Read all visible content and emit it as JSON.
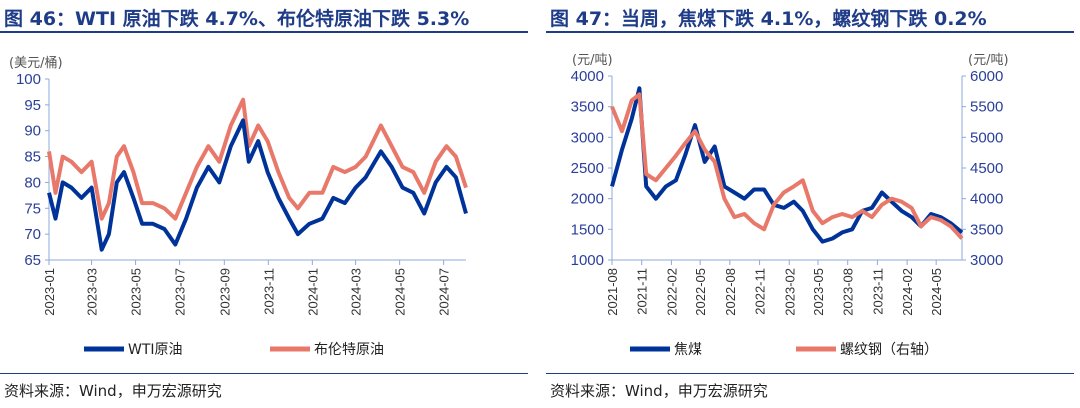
{
  "colors": {
    "title": "#1f3c88",
    "axis": "#8fa8dc",
    "series_blue": "#003399",
    "series_red": "#e8796a"
  },
  "chart_data": [
    {
      "type": "line",
      "title": "图 46：WTI 原油下跌 4.7%、布伦特原油下跌 5.3%",
      "unit_left": "(美元/桶)",
      "ylim": [
        65,
        100
      ],
      "yticks": [
        65,
        70,
        75,
        80,
        85,
        90,
        95,
        100
      ],
      "xticks": [
        "2023-01",
        "2023-03",
        "2023-05",
        "2023-07",
        "2023-09",
        "2023-11",
        "2024-01",
        "2024-03",
        "2024-05",
        "2024-07"
      ],
      "x": [
        "2023-01-01",
        "2023-01-10",
        "2023-01-20",
        "2023-02-01",
        "2023-02-15",
        "2023-03-01",
        "2023-03-15",
        "2023-03-25",
        "2023-04-05",
        "2023-04-15",
        "2023-04-28",
        "2023-05-10",
        "2023-05-25",
        "2023-06-10",
        "2023-06-25",
        "2023-07-10",
        "2023-07-25",
        "2023-08-10",
        "2023-08-25",
        "2023-09-10",
        "2023-09-27",
        "2023-10-05",
        "2023-10-18",
        "2023-10-31",
        "2023-11-15",
        "2023-11-30",
        "2023-12-12",
        "2023-12-28",
        "2024-01-15",
        "2024-01-30",
        "2024-02-15",
        "2024-03-01",
        "2024-03-15",
        "2024-04-05",
        "2024-04-20",
        "2024-05-05",
        "2024-05-20",
        "2024-06-04",
        "2024-06-20",
        "2024-07-05",
        "2024-07-18",
        "2024-08-01"
      ],
      "series": [
        {
          "name": "WTI原油",
          "axis": "left",
          "values": [
            78,
            73,
            80,
            79,
            77,
            79,
            67,
            70,
            80,
            82,
            77,
            72,
            72,
            71,
            68,
            73,
            79,
            83,
            80,
            87,
            92,
            84,
            88,
            82,
            77,
            73,
            70,
            72,
            73,
            77,
            76,
            79,
            81,
            86,
            83,
            79,
            78,
            74,
            80,
            83,
            81,
            74
          ]
        },
        {
          "name": "布伦特原油",
          "axis": "left",
          "values": [
            86,
            78,
            85,
            84,
            82,
            84,
            73,
            76,
            85,
            87,
            82,
            76,
            76,
            75,
            73,
            78,
            83,
            87,
            84,
            91,
            96,
            87,
            91,
            88,
            82,
            77,
            75,
            78,
            78,
            83,
            82,
            83,
            85,
            91,
            87,
            83,
            82,
            78,
            84,
            87,
            85,
            79
          ]
        }
      ],
      "legend": "bottom"
    },
    {
      "type": "line",
      "title": "图 47：当周，焦煤下跌 4.1%，螺纹钢下跌 0.2%",
      "unit_left": "(元/吨)",
      "unit_right": "(元/吨)",
      "ylim": [
        1000,
        4000
      ],
      "ylim_right": [
        3000,
        6000
      ],
      "yticks": [
        1000,
        1500,
        2000,
        2500,
        3000,
        3500,
        4000
      ],
      "yticks_right": [
        3000,
        3500,
        4000,
        4500,
        5000,
        5500,
        6000
      ],
      "xticks": [
        "2021-08",
        "2021-11",
        "2022-02",
        "2022-05",
        "2022-08",
        "2022-11",
        "2023-02",
        "2023-05",
        "2023-08",
        "2023-11",
        "2024-02",
        "2024-05"
      ],
      "x": [
        "2021-08-01",
        "2021-09-01",
        "2021-10-01",
        "2021-10-25",
        "2021-11-15",
        "2021-12-15",
        "2022-01-15",
        "2022-02-15",
        "2022-03-15",
        "2022-04-15",
        "2022-05-15",
        "2022-06-15",
        "2022-07-15",
        "2022-08-15",
        "2022-09-15",
        "2022-10-15",
        "2022-11-15",
        "2022-12-15",
        "2023-01-15",
        "2023-02-15",
        "2023-03-15",
        "2023-04-15",
        "2023-05-15",
        "2023-06-15",
        "2023-07-15",
        "2023-08-15",
        "2023-09-15",
        "2023-10-15",
        "2023-11-15",
        "2023-12-15",
        "2024-01-15",
        "2024-02-15",
        "2024-03-15",
        "2024-04-15",
        "2024-05-15",
        "2024-06-15",
        "2024-07-20"
      ],
      "series": [
        {
          "name": "焦煤",
          "axis": "left",
          "values": [
            2200,
            2800,
            3300,
            3800,
            2200,
            2000,
            2200,
            2300,
            2700,
            3200,
            2600,
            2850,
            2200,
            2100,
            2000,
            2150,
            2150,
            1900,
            1850,
            1950,
            1800,
            1500,
            1300,
            1350,
            1450,
            1500,
            1800,
            1850,
            2100,
            1950,
            1800,
            1700,
            1550,
            1750,
            1700,
            1600,
            1450
          ]
        },
        {
          "name": "螺纹钢（右轴）",
          "axis": "right",
          "values": [
            5500,
            5100,
            5600,
            5700,
            4400,
            4300,
            4500,
            4700,
            4900,
            5100,
            4800,
            4600,
            4000,
            3700,
            3750,
            3600,
            3500,
            3900,
            4100,
            4200,
            4300,
            3800,
            3600,
            3700,
            3750,
            3700,
            3800,
            3700,
            3900,
            4000,
            3950,
            3850,
            3550,
            3700,
            3650,
            3550,
            3350
          ]
        }
      ],
      "legend": "bottom"
    }
  ],
  "source": "资料来源：Wind，申万宏源研究"
}
